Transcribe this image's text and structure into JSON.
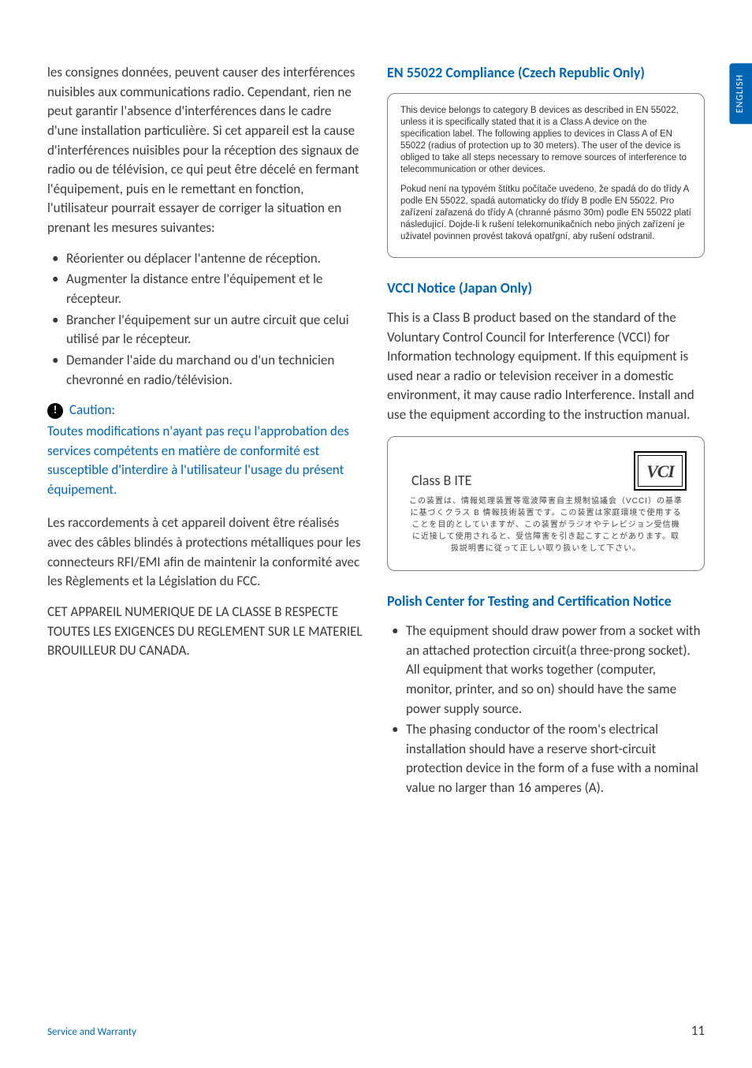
{
  "sideTab": "ENGLISH",
  "footer": {
    "label": "Service and Warranty",
    "page": "11"
  },
  "left": {
    "intro": "les consignes données, peuvent causer des interférences nuisibles aux communications radio. Cependant, rien ne peut garantir l'absence d'interférences dans le cadre d'une installation particulière. Si cet appareil est la cause d'interférences nuisibles pour la réception des signaux de radio ou de télévision, ce qui peut être décelé en fermant l'équipement, puis en le remettant en fonction, l'utilisateur pourrait essayer de corriger la situation en prenant les mesures suivantes:",
    "bullets": [
      "Réorienter ou déplacer l'antenne de réception.",
      "Augmenter la distance entre l'équipement et le récepteur.",
      "Brancher l'équipement sur un autre circuit que celui utilisé par le récepteur.",
      "Demander l'aide du marchand ou d'un technicien chevronné en radio/télévision."
    ],
    "cautionLabel": "Caution:",
    "cautionBody": "Toutes modifications n'ayant pas reçu l'approbation des services compétents en matière de conformité est susceptible d'interdire à l'utilisateur l'usage du présent équipement.",
    "para2": "Les raccordements à cet appareil doivent être réalisés avec des câbles blindés à protections métalliques pour les connecteurs RFI/EMI afin de maintenir la conformité avec les Règlements et la Législation du FCC.",
    "para3": "CET APPAREIL NUMERIQUE DE LA CLASSE B RESPECTE TOUTES LES EXIGENCES DU REGLEMENT SUR LE MATERIEL BROUILLEUR DU CANADA."
  },
  "right": {
    "sec1": {
      "title": "EN 55022 Compliance (Czech Republic Only)",
      "boxEn": "This device belongs to category B devices as described in EN 55022, unless it is specifically stated that it is a Class A device on the specification label. The following applies to devices in Class A of EN 55022 (radius of protection up to 30 meters). The user of the device is obliged to take all steps necessary to remove sources of interference to telecommunication or other devices.",
      "boxCz": "Pokud není na typovém štítku počítače uvedeno, že spadá do do třídy A podle EN 55022, spadá automaticky do třídy B podle EN 55022. Pro zařízení zařazená do třídy A (chranné pásmo 30m) podle EN 55022 platí následující. Dojde-li k rušení telekomunikačních nebo jiných zařízení je uživatel povinnen provést taková opatřgní, aby rušení odstranil."
    },
    "sec2": {
      "title": "VCCI Notice (Japan Only)",
      "body": "This is a Class B product based on the standard of the Voluntary Control Council for Interference (VCCI) for Information technology equipment. If this equipment is used near a radio or television receiver in a domestic environment, it may cause radio Interference. Install and use the equipment according to the instruction manual.",
      "classLabel": "Class B ITE",
      "logo": "VCI",
      "jp": "この装置は、情報処理装置等電波障害自主規制協議会（VCCI）の基準に基づくクラス B 情報技術装置です。この装置は家庭環境で使用することを目的としていますが、この装置がラジオやテレビジョン受信機に近接して使用されると、受信障害を引き起こすことがあります。取扱説明書に従って正しい取り扱いをして下さい。"
    },
    "sec3": {
      "title": "Polish Center for Testing and Certification Notice",
      "bullets": [
        "The equipment should draw power from a socket with an attached protection circuit(a three-prong socket). All equipment that works together (computer, monitor, printer, and so on) should have the same power supply source.",
        "The phasing conductor of the room's electrical installation should have a reserve short-circuit protection device in the form of a fuse with a nominal value no larger than 16 amperes (A)."
      ]
    }
  }
}
